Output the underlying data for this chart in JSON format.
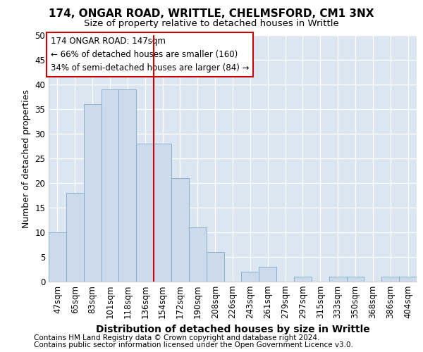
{
  "title1": "174, ONGAR ROAD, WRITTLE, CHELMSFORD, CM1 3NX",
  "title2": "Size of property relative to detached houses in Writtle",
  "xlabel": "Distribution of detached houses by size in Writtle",
  "ylabel": "Number of detached properties",
  "categories": [
    "47sqm",
    "65sqm",
    "83sqm",
    "101sqm",
    "118sqm",
    "136sqm",
    "154sqm",
    "172sqm",
    "190sqm",
    "208sqm",
    "226sqm",
    "243sqm",
    "261sqm",
    "279sqm",
    "297sqm",
    "315sqm",
    "333sqm",
    "350sqm",
    "368sqm",
    "386sqm",
    "404sqm"
  ],
  "values": [
    10,
    18,
    36,
    39,
    39,
    28,
    28,
    21,
    11,
    6,
    0,
    2,
    3,
    0,
    1,
    0,
    1,
    1,
    0,
    1,
    1
  ],
  "bar_color": "#ccdaeb",
  "bar_edge_color": "#7eaac8",
  "bg_color": "#dce6f0",
  "annotation_text": "174 ONGAR ROAD: 147sqm\n← 66% of detached houses are smaller (160)\n34% of semi-detached houses are larger (84) →",
  "annotation_box_color": "#ffffff",
  "annotation_box_edge": "#cc0000",
  "vline_x": 6.0,
  "vline_color": "#cc0000",
  "ylim": [
    0,
    50
  ],
  "yticks": [
    0,
    5,
    10,
    15,
    20,
    25,
    30,
    35,
    40,
    45,
    50
  ],
  "footer1": "Contains HM Land Registry data © Crown copyright and database right 2024.",
  "footer2": "Contains public sector information licensed under the Open Government Licence v3.0.",
  "title1_fontsize": 11,
  "title2_fontsize": 9.5,
  "xlabel_fontsize": 10,
  "ylabel_fontsize": 9,
  "tick_fontsize": 8.5,
  "annot_fontsize": 8.5,
  "footer_fontsize": 7.5
}
